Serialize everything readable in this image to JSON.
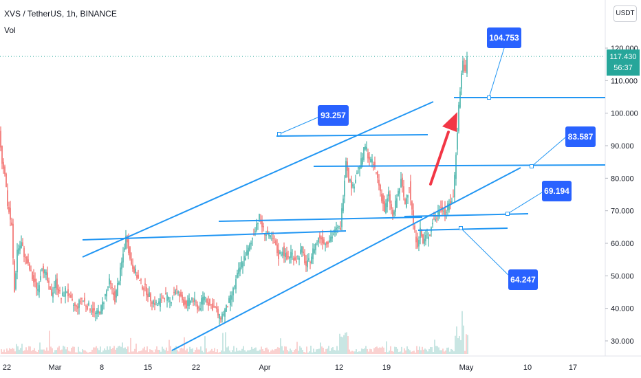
{
  "header": {
    "symbol_line": "XVS / TetherUS, 1h, BINANCE",
    "volume_label": "Vol",
    "currency_button": "USDT"
  },
  "last_price": {
    "value": "117.430",
    "countdown": "56:37",
    "color": "#26a69a"
  },
  "colors": {
    "bull": "#26a69a",
    "bear": "#ef5350",
    "trendline": "#2196f3",
    "callout": "#2962ff",
    "arrow": "#f23645"
  },
  "callouts": [
    {
      "label": "104.753"
    },
    {
      "label": "93.257"
    },
    {
      "label": "83.587"
    },
    {
      "label": "69.194"
    },
    {
      "label": "64.247"
    }
  ],
  "chart_data": {
    "type": "candlestick",
    "y_axis": {
      "ticks": [
        30,
        40,
        50,
        60,
        70,
        80,
        90,
        100,
        110,
        120
      ],
      "tick_labels": [
        "30.000",
        "40.000",
        "50.000",
        "60.000",
        "70.000",
        "80.000",
        "90.000",
        "100.000",
        "110.000",
        "120.000"
      ],
      "range": [
        27,
        127
      ]
    },
    "x_axis": {
      "tick_labels": [
        "22",
        "Mar",
        "8",
        "15",
        "22",
        "Apr",
        "12",
        "19",
        "May",
        "10",
        "17"
      ]
    },
    "price_path": [
      [
        0,
        95
      ],
      [
        4,
        85
      ],
      [
        8,
        82
      ],
      [
        12,
        72
      ],
      [
        18,
        65
      ],
      [
        22,
        45
      ],
      [
        26,
        58
      ],
      [
        32,
        60
      ],
      [
        38,
        55
      ],
      [
        44,
        52
      ],
      [
        50,
        48
      ],
      [
        56,
        46
      ],
      [
        62,
        53
      ],
      [
        68,
        50
      ],
      [
        75,
        44
      ],
      [
        82,
        48
      ],
      [
        90,
        43
      ],
      [
        97,
        46
      ],
      [
        104,
        42
      ],
      [
        112,
        40
      ],
      [
        120,
        43
      ],
      [
        127,
        41
      ],
      [
        134,
        40
      ],
      [
        141,
        38
      ],
      [
        148,
        40
      ],
      [
        154,
        44
      ],
      [
        160,
        48
      ],
      [
        168,
        43
      ],
      [
        175,
        50
      ],
      [
        181,
        58
      ],
      [
        185,
        63
      ],
      [
        190,
        55
      ],
      [
        196,
        52
      ],
      [
        204,
        48
      ],
      [
        212,
        46
      ],
      [
        220,
        43
      ],
      [
        230,
        41
      ],
      [
        240,
        44
      ],
      [
        248,
        42
      ],
      [
        256,
        46
      ],
      [
        264,
        43
      ],
      [
        272,
        41
      ],
      [
        280,
        43
      ],
      [
        290,
        40
      ],
      [
        298,
        44
      ],
      [
        306,
        41
      ],
      [
        314,
        40
      ],
      [
        320,
        37
      ],
      [
        324,
        38
      ],
      [
        330,
        40
      ],
      [
        338,
        44
      ],
      [
        346,
        50
      ],
      [
        354,
        55
      ],
      [
        360,
        57
      ],
      [
        366,
        60
      ],
      [
        372,
        65
      ],
      [
        378,
        68
      ],
      [
        384,
        64
      ],
      [
        392,
        62
      ],
      [
        400,
        60
      ],
      [
        406,
        56
      ],
      [
        412,
        58
      ],
      [
        418,
        55
      ],
      [
        424,
        57
      ],
      [
        432,
        55
      ],
      [
        440,
        58
      ],
      [
        446,
        53
      ],
      [
        452,
        55
      ],
      [
        458,
        59
      ],
      [
        466,
        62
      ],
      [
        474,
        60
      ],
      [
        482,
        62
      ],
      [
        490,
        64
      ],
      [
        496,
        65
      ],
      [
        500,
        75
      ],
      [
        504,
        86
      ],
      [
        508,
        80
      ],
      [
        514,
        77
      ],
      [
        520,
        82
      ],
      [
        526,
        85
      ],
      [
        532,
        90
      ],
      [
        538,
        86
      ],
      [
        544,
        84
      ],
      [
        550,
        80
      ],
      [
        556,
        74
      ],
      [
        560,
        70
      ],
      [
        566,
        75
      ],
      [
        572,
        68
      ],
      [
        578,
        74
      ],
      [
        584,
        79
      ],
      [
        590,
        72
      ],
      [
        596,
        78
      ],
      [
        600,
        70
      ],
      [
        604,
        63
      ],
      [
        608,
        60
      ],
      [
        612,
        64
      ],
      [
        616,
        60
      ],
      [
        620,
        62
      ],
      [
        626,
        63
      ],
      [
        630,
        67
      ],
      [
        636,
        68
      ],
      [
        642,
        72
      ],
      [
        648,
        69
      ],
      [
        654,
        72
      ],
      [
        660,
        74
      ],
      [
        664,
        88
      ],
      [
        668,
        102
      ],
      [
        671,
        110
      ],
      [
        674,
        116
      ],
      [
        678,
        112
      ],
      [
        680,
        117
      ]
    ],
    "volume_bars": "histogram",
    "annotations": [
      {
        "label": "104.753",
        "y": 104.753
      },
      {
        "label": "93.257",
        "y": 93.257
      },
      {
        "label": "83.587",
        "y": 83.587
      },
      {
        "label": "69.194",
        "y": 69.194
      },
      {
        "label": "64.247",
        "y": 64.247
      }
    ],
    "last_price": 117.43
  }
}
